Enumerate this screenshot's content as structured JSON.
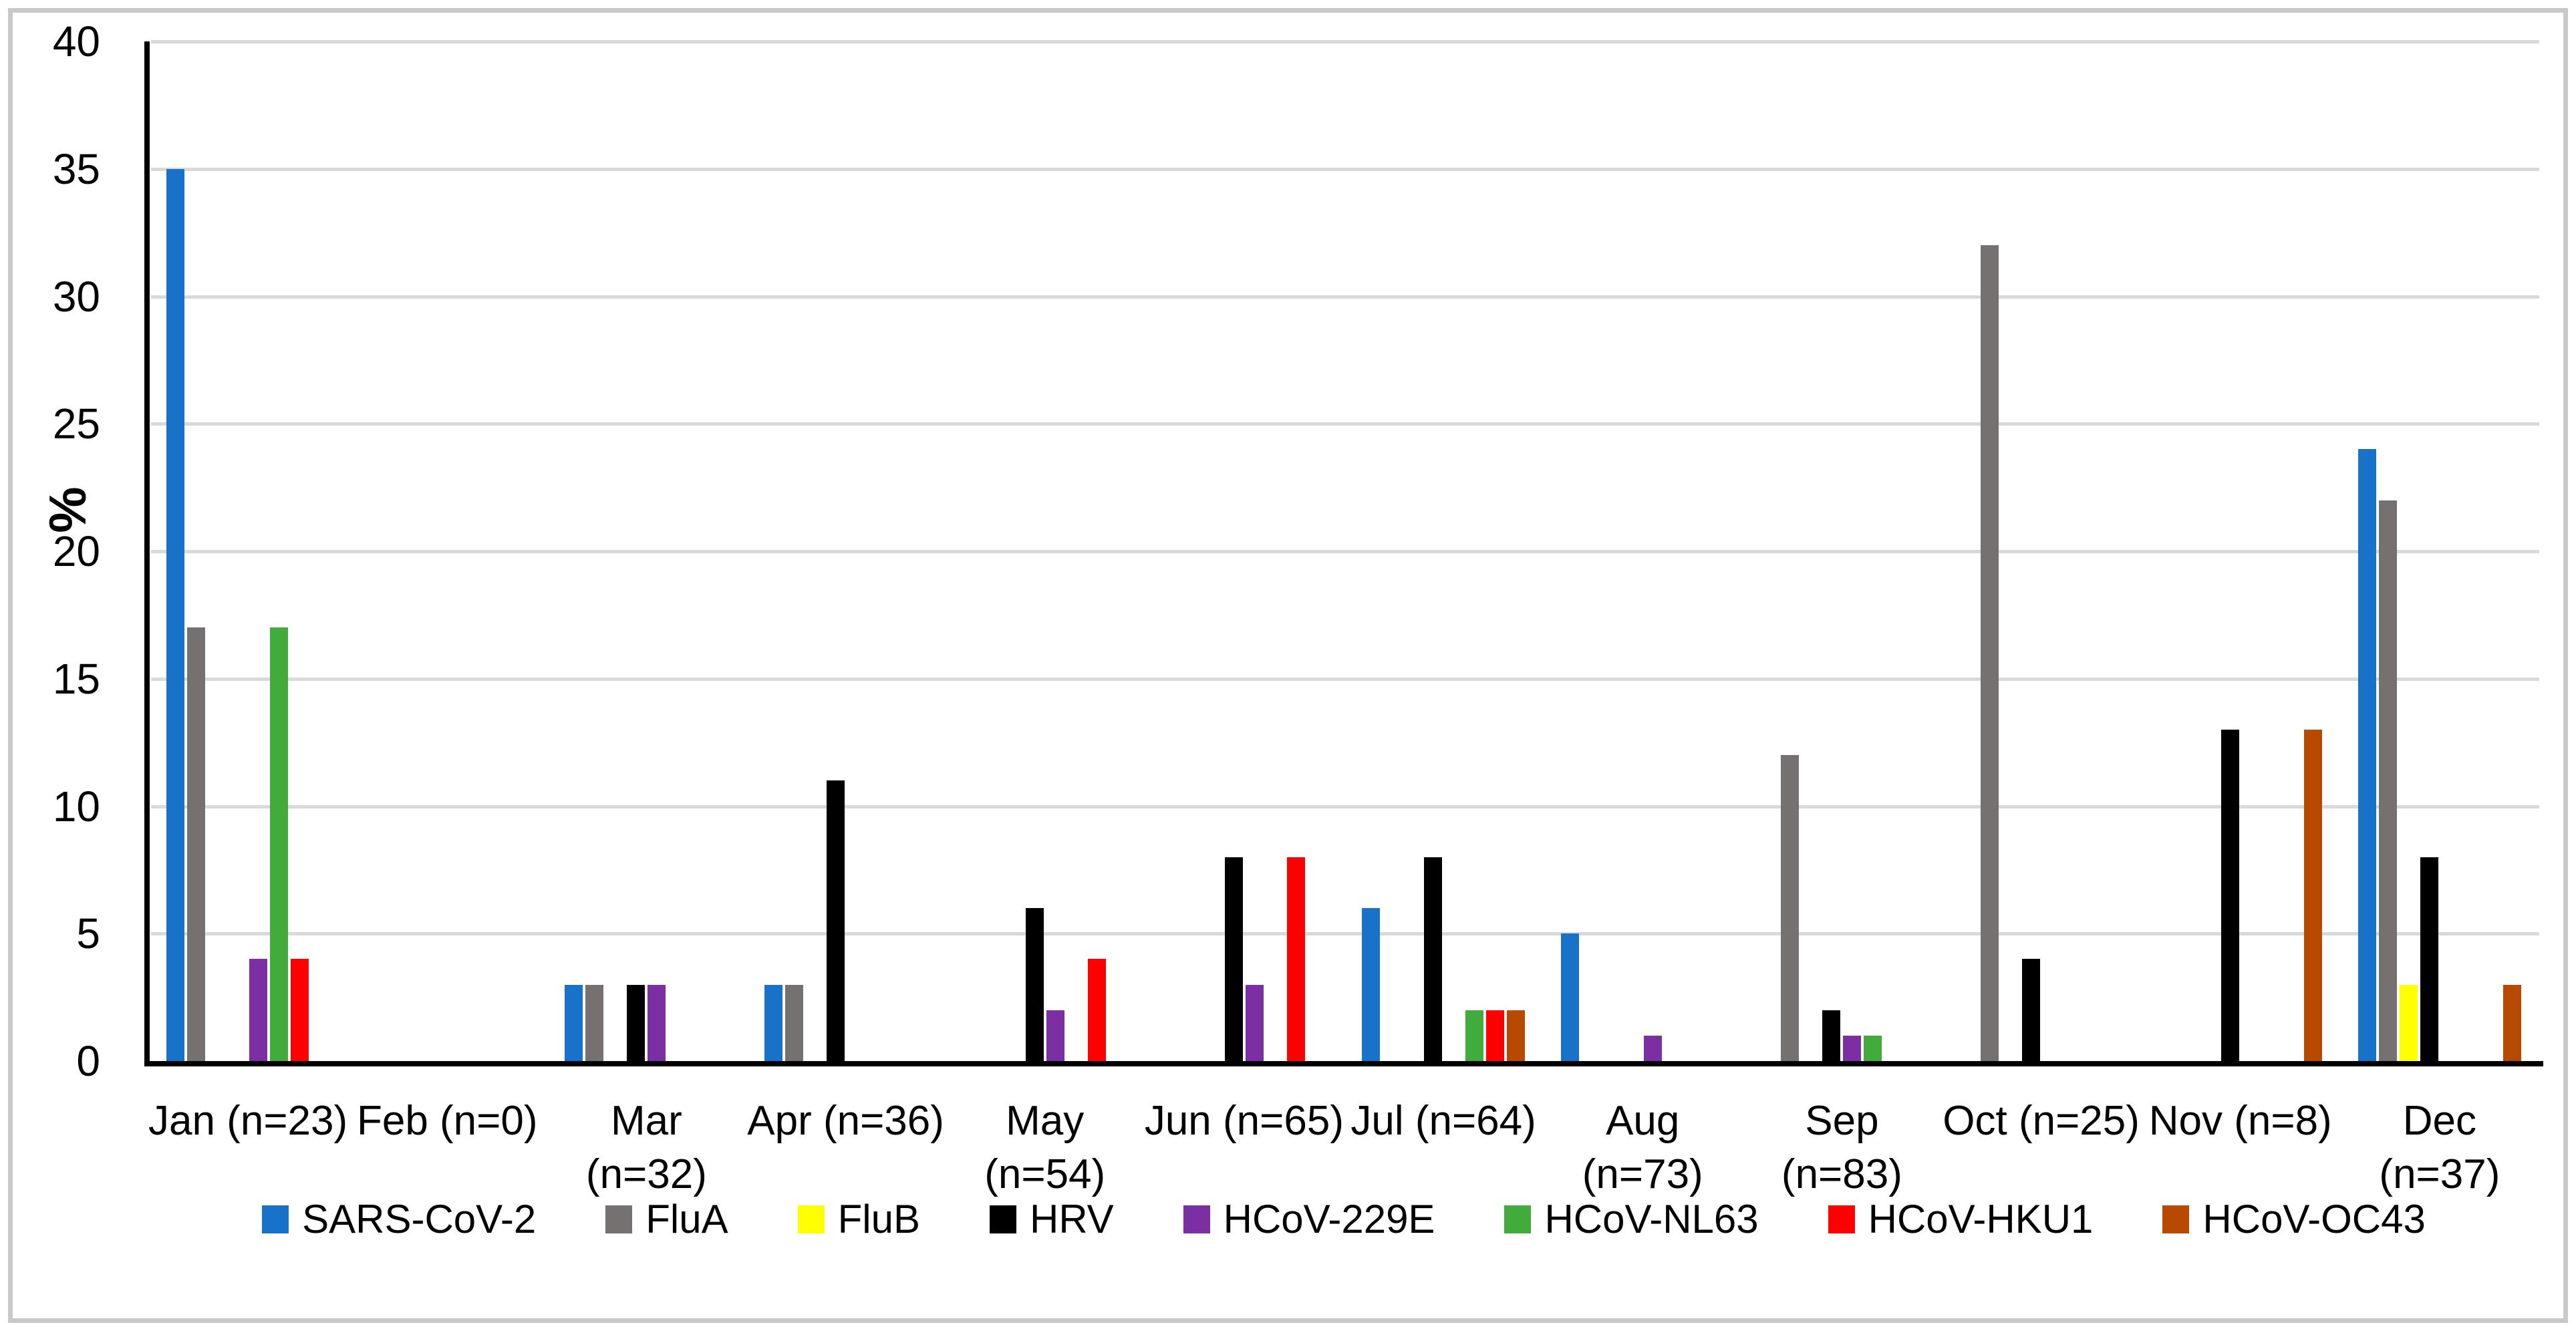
{
  "chart_data": {
    "type": "bar",
    "title": "",
    "ylabel": "%",
    "xlabel": "",
    "ylim": [
      0,
      40
    ],
    "ytick_step": 5,
    "y_ticks": [
      0,
      5,
      10,
      15,
      20,
      25,
      30,
      35,
      40
    ],
    "grid": true,
    "legend_position": "bottom",
    "categories": [
      "Jan (n=23)",
      "Feb (n=0)",
      "Mar (n=32)",
      "Apr (n=36)",
      "May (n=54)",
      "Jun (n=65)",
      "Jul (n=64)",
      "Aug (n=73)",
      "Sep (n=83)",
      "Oct (n=25)",
      "Nov (n=8)",
      "Dec (n=37)"
    ],
    "category_label_lines": [
      [
        "Jan (n=23)"
      ],
      [
        "Feb (n=0)"
      ],
      [
        "Mar",
        "(n=32)"
      ],
      [
        "Apr (n=36)"
      ],
      [
        "May",
        "(n=54)"
      ],
      [
        "Jun (n=65)"
      ],
      [
        "Jul (n=64)"
      ],
      [
        "Aug (n=73)"
      ],
      [
        "Sep (n=83)"
      ],
      [
        "Oct (n=25)"
      ],
      [
        "Nov (n=8)"
      ],
      [
        "Dec (n=37)"
      ]
    ],
    "series": [
      {
        "name": "SARS-CoV-2",
        "color": "#1772C8",
        "values": [
          35,
          0,
          3,
          3,
          0,
          0,
          6,
          5,
          0,
          0,
          0,
          24
        ]
      },
      {
        "name": "FluA",
        "color": "#767171",
        "values": [
          17,
          0,
          3,
          3,
          0,
          0,
          0,
          0,
          12,
          32,
          0,
          22
        ]
      },
      {
        "name": "FluB",
        "color": "#FFFF00",
        "values": [
          0,
          0,
          0,
          0,
          0,
          0,
          0,
          0,
          0,
          0,
          0,
          3
        ]
      },
      {
        "name": "HRV",
        "color": "#000000",
        "values": [
          0,
          0,
          3,
          11,
          6,
          8,
          8,
          0,
          2,
          4,
          13,
          8
        ]
      },
      {
        "name": "HCoV-229E",
        "color": "#7B2FA3",
        "values": [
          4,
          0,
          3,
          0,
          2,
          3,
          0,
          1,
          1,
          0,
          0,
          0
        ]
      },
      {
        "name": "HCoV-NL63",
        "color": "#41AB3C",
        "values": [
          17,
          0,
          0,
          0,
          0,
          0,
          2,
          0,
          1,
          0,
          0,
          0
        ]
      },
      {
        "name": "HCoV-HKU1",
        "color": "#FF0000",
        "values": [
          4,
          0,
          0,
          0,
          4,
          8,
          2,
          0,
          0,
          0,
          0,
          0
        ]
      },
      {
        "name": "HCoV-OC43",
        "color": "#B84A00",
        "values": [
          0,
          0,
          0,
          0,
          0,
          0,
          2,
          0,
          0,
          0,
          13,
          3
        ]
      }
    ]
  },
  "colors": {
    "background": "#FFFFFF",
    "gridline": "#D9D9D9",
    "axis": "#000000",
    "border": "#C9C9C9",
    "text": "#000000"
  }
}
